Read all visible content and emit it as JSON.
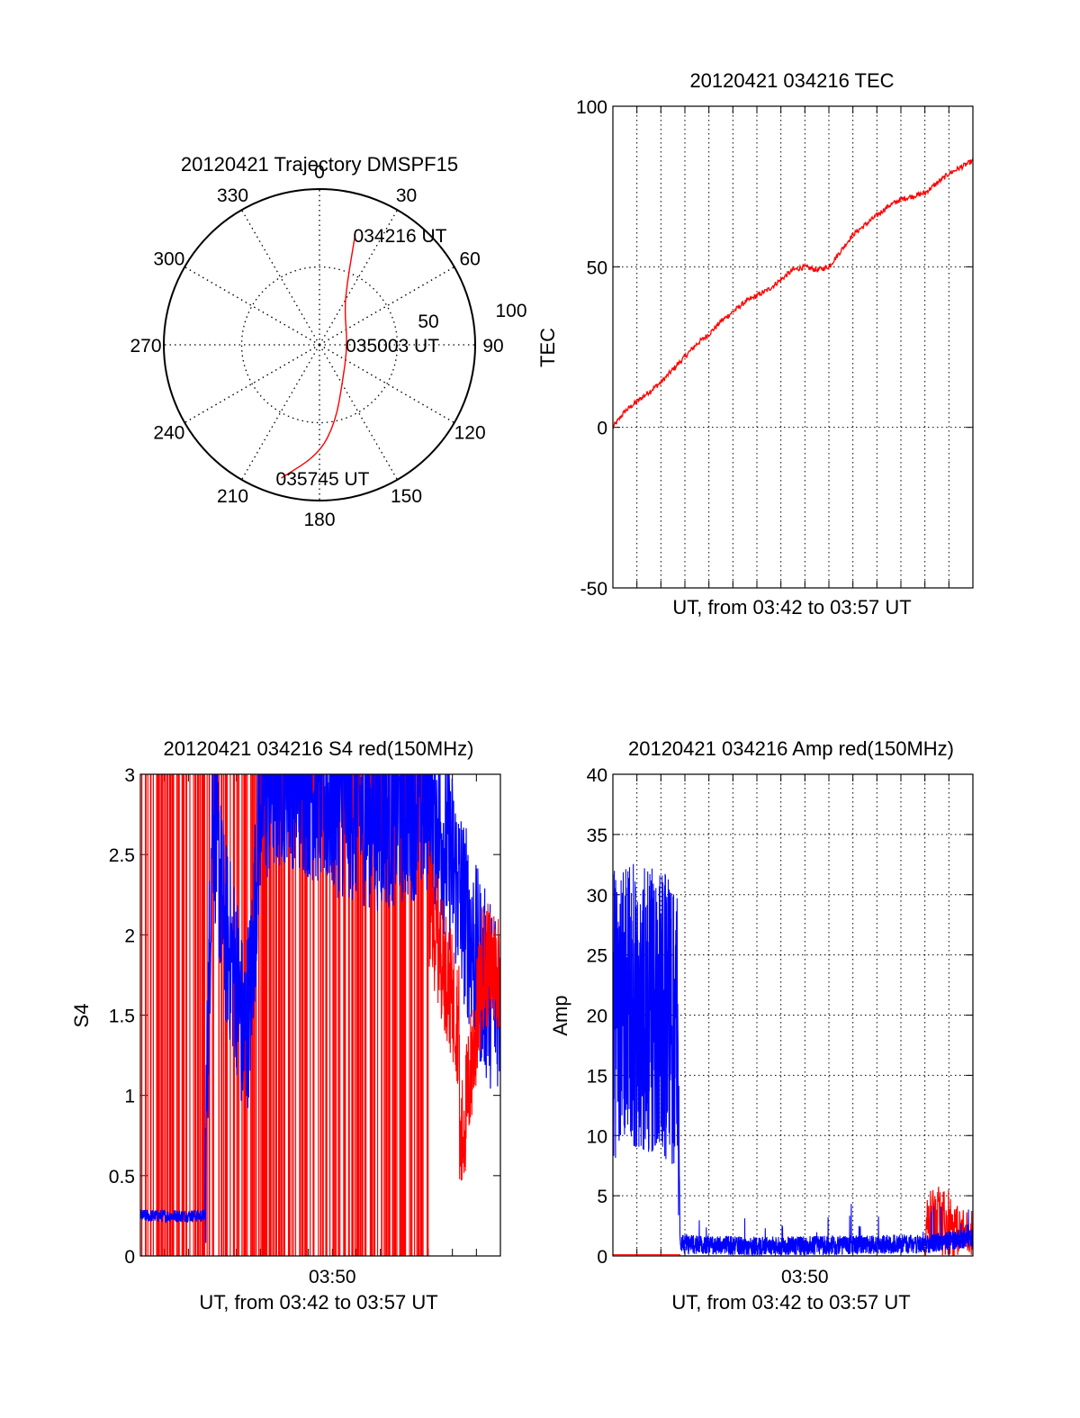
{
  "colors": {
    "primary": "#ff0000",
    "secondary": "#0000ff",
    "axis": "#000000",
    "grid": "#000000",
    "background": "#ffffff"
  },
  "chart_data": [
    {
      "type": "polar",
      "title": "20120421 Trajectory DMSPF15",
      "angle_labels": [
        "0",
        "30",
        "60",
        "90",
        "120",
        "150",
        "180",
        "210",
        "240",
        "270",
        "300",
        "330"
      ],
      "radius_labels": [
        "50",
        "100"
      ],
      "rlim": [
        0,
        100
      ],
      "grid": true,
      "series": [
        {
          "color": "#ff0000",
          "points": [
            {
              "az": 18,
              "r": 74
            },
            {
              "az": 20,
              "r": 60
            },
            {
              "az": 24,
              "r": 44
            },
            {
              "az": 35,
              "r": 28
            },
            {
              "az": 90,
              "r": 18
            },
            {
              "az": 148,
              "r": 28
            },
            {
              "az": 168,
              "r": 50
            },
            {
              "az": 180,
              "r": 70
            },
            {
              "az": 196,
              "r": 89
            }
          ]
        }
      ],
      "annotations": [
        {
          "text": "034216 UT",
          "az": 18,
          "r": 74
        },
        {
          "text": "035003 UT",
          "az": 90,
          "r": 18
        },
        {
          "text": "035745 UT",
          "az": 196,
          "r": 89
        }
      ]
    },
    {
      "type": "line",
      "title": "20120421 034216 TEC",
      "xlabel": "UT, from 03:42 to 03:57 UT",
      "ylabel": "TEC",
      "xlim": [
        "03:42",
        "03:57"
      ],
      "ylim": [
        -50,
        100
      ],
      "yticks": [
        "-50",
        "0",
        "50",
        "100"
      ],
      "xticks": [],
      "grid": true,
      "x_minutes_from_start": [
        0,
        0.5,
        1,
        1.5,
        2,
        2.5,
        3,
        3.5,
        4,
        4.5,
        5,
        5.5,
        6,
        6.5,
        7,
        7.5,
        8,
        8.5,
        9,
        9.5,
        10,
        10.5,
        11,
        11.5,
        12,
        12.5,
        13,
        13.5,
        14,
        14.5,
        15
      ],
      "series": [
        {
          "color": "#ff0000",
          "values": [
            0,
            5,
            8,
            11,
            14,
            18,
            22,
            26,
            29,
            33,
            36,
            39,
            41,
            43,
            46,
            49,
            50,
            49,
            50,
            55,
            60,
            63,
            66,
            69,
            71,
            72,
            73,
            76,
            79,
            81,
            83
          ]
        }
      ]
    },
    {
      "type": "line",
      "title": "20120421 034216 S4 red(150MHz)",
      "xlabel": "UT, from 03:42 to 03:57 UT",
      "ylabel": "S4",
      "xlim": [
        "03:42",
        "03:57"
      ],
      "ylim": [
        0,
        3
      ],
      "yticks": [
        "0",
        "0.5",
        "1",
        "1.5",
        "2",
        "2.5",
        "3"
      ],
      "xticks": [
        "03:50"
      ],
      "grid": false,
      "series": [
        {
          "color": "#ff0000",
          "style": "spikes"
        },
        {
          "color": "#0000ff",
          "style": "noisy",
          "envelope": [
            {
              "x": 0,
              "y": 0.25
            },
            {
              "x": 2.7,
              "y": 0.25
            },
            {
              "x": 3.0,
              "y": 2.6
            },
            {
              "x": 3.5,
              "y": 1.8
            },
            {
              "x": 4.0,
              "y": 1.5
            },
            {
              "x": 4.3,
              "y": 1.1
            },
            {
              "x": 4.6,
              "y": 1.4
            },
            {
              "x": 5.0,
              "y": 2.6
            },
            {
              "x": 6,
              "y": 2.8
            },
            {
              "x": 8,
              "y": 2.6
            },
            {
              "x": 10,
              "y": 2.5
            },
            {
              "x": 12,
              "y": 2.6
            },
            {
              "x": 13,
              "y": 2.2
            },
            {
              "x": 14,
              "y": 1.6
            },
            {
              "x": 14.5,
              "y": 1.4
            },
            {
              "x": 15,
              "y": 1.4
            }
          ]
        }
      ]
    },
    {
      "type": "line",
      "title": "20120421 034216 Amp red(150MHz)",
      "xlabel": "UT, from 03:42 to 03:57 UT",
      "ylabel": "Amp",
      "xlim": [
        "03:42",
        "03:57"
      ],
      "ylim": [
        0,
        40
      ],
      "yticks": [
        "0",
        "5",
        "10",
        "15",
        "20",
        "25",
        "30",
        "35",
        "40"
      ],
      "xticks": [
        "03:50"
      ],
      "grid": true,
      "series": [
        {
          "color": "#ff0000",
          "style": "noisy",
          "envelope": [
            {
              "x": 0,
              "y": 0.1
            },
            {
              "x": 2.8,
              "y": 0.1
            },
            {
              "x": 13.0,
              "y": 0
            },
            {
              "x": 13.1,
              "y": 5.5
            },
            {
              "x": 14.0,
              "y": 6
            },
            {
              "x": 14.4,
              "y": 4
            }
          ]
        },
        {
          "color": "#0000ff",
          "style": "noisy",
          "envelope": [
            {
              "x": 0,
              "y": 20
            },
            {
              "x": 1.0,
              "y": 21
            },
            {
              "x": 2.0,
              "y": 20
            },
            {
              "x": 2.7,
              "y": 19
            },
            {
              "x": 2.8,
              "y": 1.0
            },
            {
              "x": 6,
              "y": 0.8
            },
            {
              "x": 10,
              "y": 0.9
            },
            {
              "x": 13,
              "y": 1.0
            },
            {
              "x": 15,
              "y": 1.5
            }
          ]
        }
      ]
    }
  ]
}
